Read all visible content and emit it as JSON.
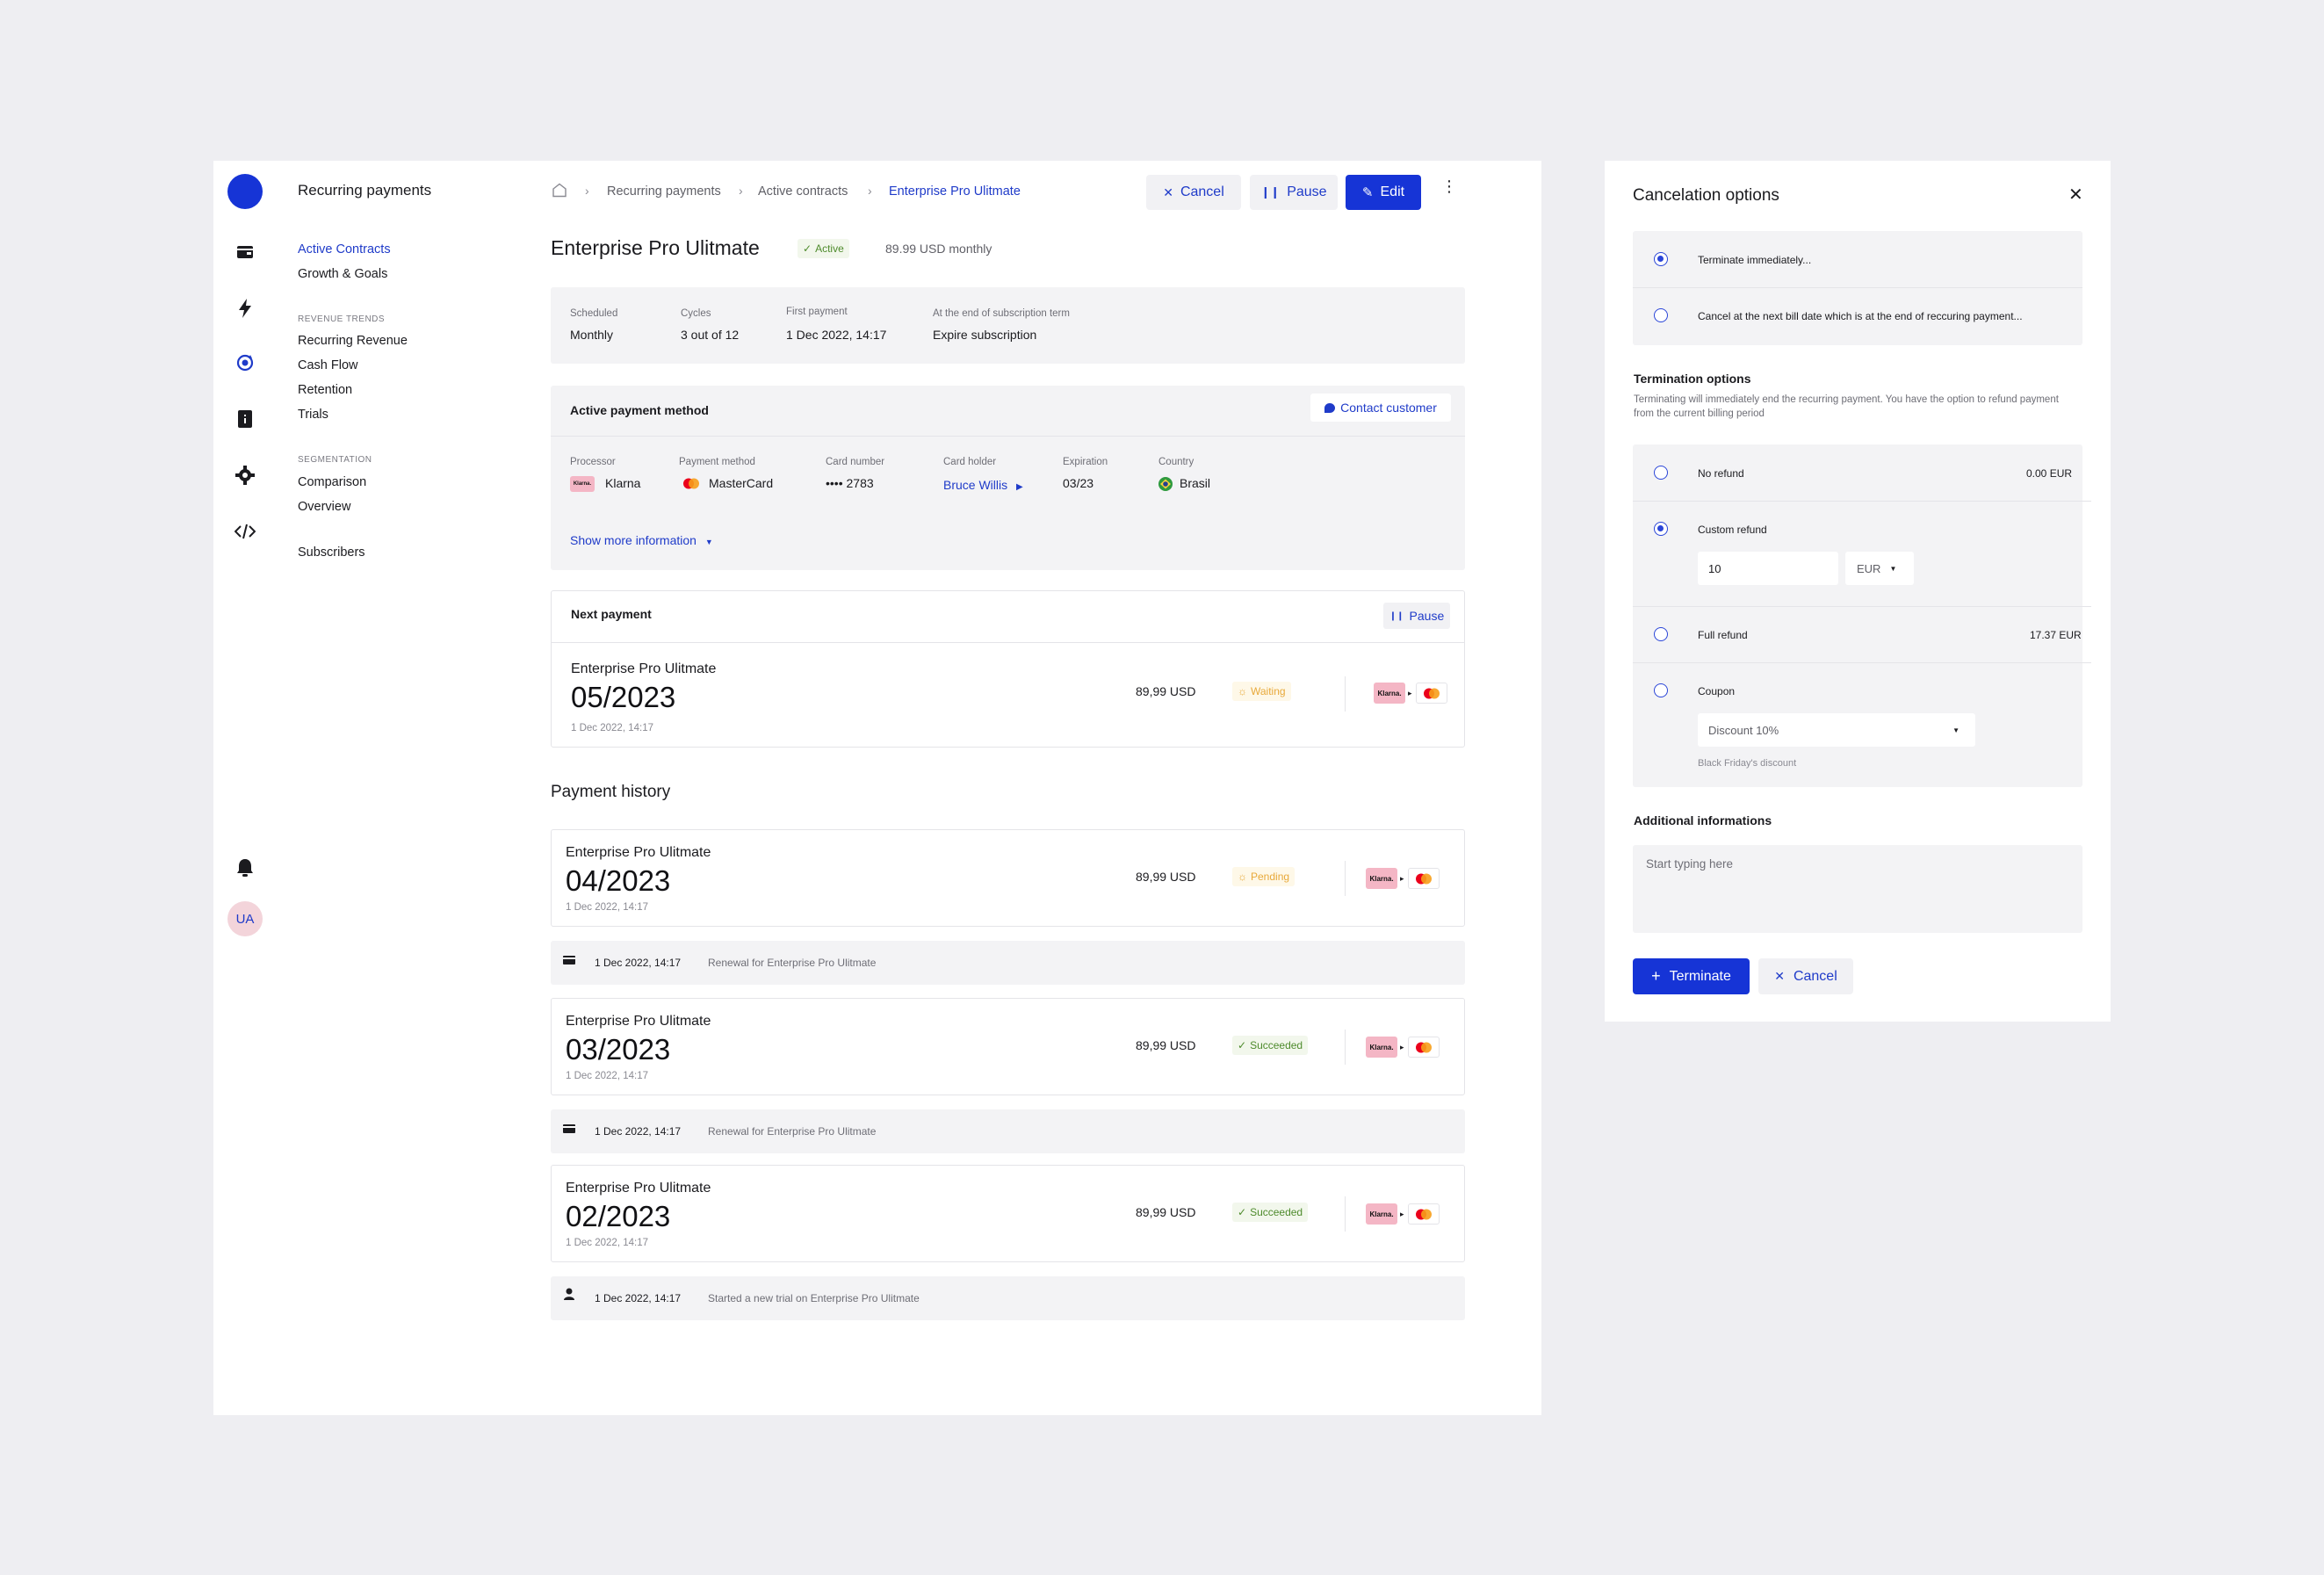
{
  "nav": {
    "title": "Recurring payments",
    "items": [
      "Active Contracts",
      "Growth & Goals"
    ],
    "section_revenue": "REVENUE TRENDS",
    "revenue_items": [
      "Recurring Revenue",
      "Cash Flow",
      "Retention",
      "Trials"
    ],
    "section_segmentation": "SEGMENTATION",
    "segmentation_items": [
      "Comparison",
      "Overview"
    ],
    "subscribers": "Subscribers",
    "avatar": "UA"
  },
  "breadcrumb": [
    "Recurring payments",
    "Active contracts",
    "Enterprise Pro Ulitmate"
  ],
  "toolbar": {
    "cancel": "Cancel",
    "pause": "Pause",
    "edit": "Edit"
  },
  "contract": {
    "title": "Enterprise Pro Ulitmate",
    "status": "Active",
    "price": "89.99 USD monthly",
    "summary": [
      {
        "label": "Scheduled",
        "value": "Monthly"
      },
      {
        "label": "Cycles",
        "value": "3 out of 12"
      },
      {
        "label": "First payment",
        "value": "1 Dec 2022, 14:17"
      },
      {
        "label": "At the end of subscription term",
        "value": "Expire subscription"
      }
    ]
  },
  "payment_method": {
    "title": "Active payment method",
    "contact": "Contact customer",
    "fields": [
      {
        "label": "Processor",
        "value": "Klarna"
      },
      {
        "label": "Payment method",
        "value": "MasterCard"
      },
      {
        "label": "Card number",
        "value": "•••• 2783"
      },
      {
        "label": "Card holder",
        "value": "Bruce Willis"
      },
      {
        "label": "Expiration",
        "value": "03/23"
      },
      {
        "label": "Country",
        "value": "Brasil"
      }
    ],
    "show_more": "Show more information",
    "klarna_logo": "Klarna."
  },
  "next_payment": {
    "title": "Next payment",
    "pause": "Pause",
    "name": "Enterprise Pro Ulitmate",
    "period": "05/2023",
    "date": "1 Dec 2022, 14:17",
    "amount": "89,99 USD",
    "status": "Waiting"
  },
  "history": {
    "title": "Payment history",
    "payments": [
      {
        "name": "Enterprise Pro Ulitmate",
        "period": "04/2023",
        "date": "1 Dec 2022, 14:17",
        "amount": "89,99 USD",
        "status": "Pending"
      },
      {
        "name": "Enterprise Pro Ulitmate",
        "period": "03/2023",
        "date": "1 Dec 2022, 14:17",
        "amount": "89,99 USD",
        "status": "Succeeded"
      },
      {
        "name": "Enterprise Pro Ulitmate",
        "period": "02/2023",
        "date": "1 Dec 2022, 14:17",
        "amount": "89,99 USD",
        "status": "Succeeded"
      }
    ],
    "logs": [
      {
        "date": "1 Dec 2022, 14:17",
        "text": "Renewal for Enterprise Pro Ulitmate",
        "icon": "card-icon"
      },
      {
        "date": "1 Dec 2022, 14:17",
        "text": "Renewal for Enterprise Pro Ulitmate",
        "icon": "card-icon"
      },
      {
        "date": "1 Dec 2022, 14:17",
        "text": "Started a new trial on Enterprise Pro Ulitmate",
        "icon": "user-icon"
      }
    ]
  },
  "panel": {
    "title": "Cancelation options",
    "options": [
      "Terminate immediately...",
      "Cancel at the next bill date which is at the end of reccuring payment..."
    ],
    "termination_title": "Termination options",
    "termination_desc": "Terminating will immediately end the recurring payment. You have the option to refund payment from the current billing period",
    "refunds": [
      {
        "label": "No refund",
        "amount": "0.00 EUR"
      },
      {
        "label": "Custom refund",
        "amount": ""
      },
      {
        "label": "Full refund",
        "amount": "17.37 EUR"
      },
      {
        "label": "Coupon",
        "amount": ""
      }
    ],
    "custom_value": "10",
    "currency": "EUR",
    "coupon_value": "Discount 10%",
    "coupon_hint": "Black Friday's discount",
    "additional_title": "Additional informations",
    "textarea_placeholder": "Start typing here",
    "terminate": "Terminate",
    "cancel": "Cancel"
  },
  "colors": {
    "accent": "#1634D6",
    "link": "#1F3BC9",
    "success": "#4E8B2C",
    "warning": "#E8A93A"
  }
}
